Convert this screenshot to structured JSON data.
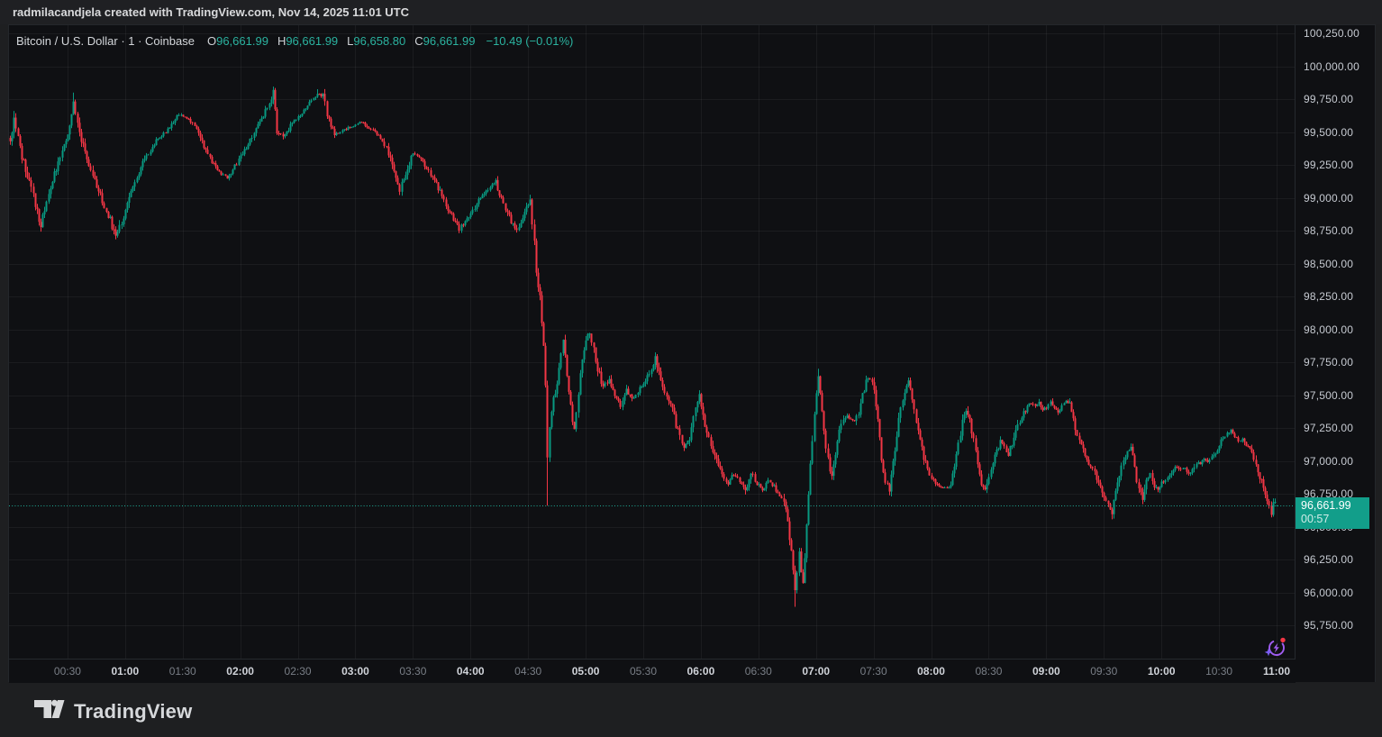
{
  "attribution": "radmilacandjela created with TradingView.com, Nov 14, 2025 11:01 UTC",
  "legend": {
    "symbol": "Bitcoin / U.S. Dollar · 1 · Coinbase",
    "ohlc": [
      {
        "label": "O",
        "value": "96,661.99"
      },
      {
        "label": "H",
        "value": "96,661.99"
      },
      {
        "label": "L",
        "value": "96,658.80"
      },
      {
        "label": "C",
        "value": "96,661.99"
      }
    ],
    "change": "−10.49 (−0.01%)"
  },
  "price_label": {
    "price": "96,661.99",
    "countdown": "00:57",
    "value": 96661.99
  },
  "footer": {
    "brand": "TradingView"
  },
  "icons": {
    "ai_assistant": "ai-spark-refresh-icon",
    "logo": "tradingview-logo"
  },
  "chart_data": {
    "type": "candlestick",
    "title": "Bitcoin / U.S. Dollar",
    "interval": "1",
    "exchange": "Coinbase",
    "last": {
      "open": 96661.99,
      "high": 96661.99,
      "low": 96658.8,
      "close": 96661.99,
      "change": -10.49,
      "change_pct": -0.01
    },
    "colors": {
      "up": "#089981",
      "down": "#f23645",
      "last_line": "#1fae98",
      "label_bg": "#129e8a",
      "grid": "rgba(250,250,255,0.05)"
    },
    "y_axis": {
      "min": 95750,
      "max": 100250,
      "tick_step": 250,
      "ticks": [
        {
          "value": 100250,
          "label": "100,250.00"
        },
        {
          "value": 100000,
          "label": "100,000.00"
        },
        {
          "value": 99750,
          "label": "99,750.00"
        },
        {
          "value": 99500,
          "label": "99,500.00"
        },
        {
          "value": 99250,
          "label": "99,250.00"
        },
        {
          "value": 99000,
          "label": "99,000.00"
        },
        {
          "value": 98750,
          "label": "98,750.00"
        },
        {
          "value": 98500,
          "label": "98,500.00"
        },
        {
          "value": 98250,
          "label": "98,250.00"
        },
        {
          "value": 98000,
          "label": "98,000.00"
        },
        {
          "value": 97750,
          "label": "97,750.00"
        },
        {
          "value": 97500,
          "label": "97,500.00"
        },
        {
          "value": 97250,
          "label": "97,250.00"
        },
        {
          "value": 97000,
          "label": "97,000.00"
        },
        {
          "value": 96750,
          "label": "96,750.00"
        },
        {
          "value": 96500,
          "label": "96,500.00"
        },
        {
          "value": 96250,
          "label": "96,250.00"
        },
        {
          "value": 96000,
          "label": "96,000.00"
        },
        {
          "value": 95750,
          "label": "95,750.00"
        }
      ]
    },
    "x_axis": {
      "start_minute": 0,
      "end_minute": 660,
      "ticks": [
        {
          "m": 30,
          "label": "00:30",
          "major": false
        },
        {
          "m": 60,
          "label": "01:00",
          "major": true
        },
        {
          "m": 90,
          "label": "01:30",
          "major": false
        },
        {
          "m": 120,
          "label": "02:00",
          "major": true
        },
        {
          "m": 150,
          "label": "02:30",
          "major": false
        },
        {
          "m": 180,
          "label": "03:00",
          "major": true
        },
        {
          "m": 210,
          "label": "03:30",
          "major": false
        },
        {
          "m": 240,
          "label": "04:00",
          "major": true
        },
        {
          "m": 270,
          "label": "04:30",
          "major": false
        },
        {
          "m": 300,
          "label": "05:00",
          "major": true
        },
        {
          "m": 330,
          "label": "05:30",
          "major": false
        },
        {
          "m": 360,
          "label": "06:00",
          "major": true
        },
        {
          "m": 390,
          "label": "06:30",
          "major": false
        },
        {
          "m": 420,
          "label": "07:00",
          "major": true
        },
        {
          "m": 450,
          "label": "07:30",
          "major": false
        },
        {
          "m": 480,
          "label": "08:00",
          "major": true
        },
        {
          "m": 510,
          "label": "08:30",
          "major": false
        },
        {
          "m": 540,
          "label": "09:00",
          "major": true
        },
        {
          "m": 570,
          "label": "09:30",
          "major": false
        },
        {
          "m": 600,
          "label": "10:00",
          "major": true
        },
        {
          "m": 630,
          "label": "10:30",
          "major": false
        },
        {
          "m": 660,
          "label": "11:00",
          "major": true
        }
      ]
    },
    "path_waypoints": [
      [
        0,
        99430
      ],
      [
        2,
        99580
      ],
      [
        6,
        99310
      ],
      [
        11,
        99060
      ],
      [
        16,
        98790
      ],
      [
        21,
        99080
      ],
      [
        26,
        99310
      ],
      [
        31,
        99560
      ],
      [
        33,
        99710
      ],
      [
        36,
        99500
      ],
      [
        41,
        99260
      ],
      [
        47,
        99010
      ],
      [
        52,
        98830
      ],
      [
        55,
        98700
      ],
      [
        59,
        98860
      ],
      [
        64,
        99090
      ],
      [
        70,
        99300
      ],
      [
        76,
        99430
      ],
      [
        82,
        99520
      ],
      [
        88,
        99640
      ],
      [
        94,
        99580
      ],
      [
        99,
        99470
      ],
      [
        104,
        99300
      ],
      [
        109,
        99190
      ],
      [
        113,
        99150
      ],
      [
        118,
        99260
      ],
      [
        124,
        99400
      ],
      [
        130,
        99580
      ],
      [
        135,
        99710
      ],
      [
        137,
        99800
      ],
      [
        139,
        99510
      ],
      [
        142,
        99450
      ],
      [
        147,
        99570
      ],
      [
        152,
        99650
      ],
      [
        157,
        99740
      ],
      [
        160,
        99795
      ],
      [
        163,
        99770
      ],
      [
        166,
        99580
      ],
      [
        169,
        99480
      ],
      [
        173,
        99510
      ],
      [
        178,
        99545
      ],
      [
        183,
        99580
      ],
      [
        187,
        99525
      ],
      [
        191,
        99490
      ],
      [
        195,
        99400
      ],
      [
        199,
        99265
      ],
      [
        203,
        99070
      ],
      [
        207,
        99230
      ],
      [
        210,
        99340
      ],
      [
        214,
        99300
      ],
      [
        219,
        99180
      ],
      [
        224,
        99050
      ],
      [
        229,
        98890
      ],
      [
        234,
        98765
      ],
      [
        239,
        98850
      ],
      [
        244,
        98990
      ],
      [
        249,
        99060
      ],
      [
        253,
        99120
      ],
      [
        257,
        98960
      ],
      [
        261,
        98820
      ],
      [
        264,
        98760
      ],
      [
        267,
        98850
      ],
      [
        269,
        98930
      ],
      [
        271,
        98990
      ],
      [
        272,
        98820
      ],
      [
        273,
        98650
      ],
      [
        274,
        98450
      ],
      [
        275,
        98290
      ],
      [
        276,
        98230
      ],
      [
        277,
        98060
      ],
      [
        278,
        97860
      ],
      [
        279,
        97560
      ],
      [
        280,
        97050
      ],
      [
        281,
        97260
      ],
      [
        283,
        97460
      ],
      [
        285,
        97570
      ],
      [
        288,
        97935
      ],
      [
        290,
        97650
      ],
      [
        292,
        97410
      ],
      [
        294,
        97240
      ],
      [
        296,
        97520
      ],
      [
        298,
        97770
      ],
      [
        300,
        97930
      ],
      [
        302,
        97975
      ],
      [
        304,
        97845
      ],
      [
        306,
        97695
      ],
      [
        309,
        97565
      ],
      [
        312,
        97620
      ],
      [
        315,
        97485
      ],
      [
        318,
        97425
      ],
      [
        321,
        97540
      ],
      [
        324,
        97465
      ],
      [
        327,
        97530
      ],
      [
        330,
        97590
      ],
      [
        333,
        97680
      ],
      [
        336,
        97770
      ],
      [
        339,
        97620
      ],
      [
        342,
        97500
      ],
      [
        345,
        97380
      ],
      [
        348,
        97230
      ],
      [
        351,
        97105
      ],
      [
        354,
        97180
      ],
      [
        357,
        97400
      ],
      [
        359,
        97520
      ],
      [
        362,
        97285
      ],
      [
        365,
        97135
      ],
      [
        368,
        97000
      ],
      [
        371,
        96890
      ],
      [
        374,
        96830
      ],
      [
        377,
        96905
      ],
      [
        380,
        96850
      ],
      [
        383,
        96780
      ],
      [
        386,
        96920
      ],
      [
        389,
        96830
      ],
      [
        392,
        96780
      ],
      [
        395,
        96850
      ],
      [
        398,
        96800
      ],
      [
        401,
        96740
      ],
      [
        403,
        96700
      ],
      [
        405,
        96550
      ],
      [
        407,
        96300
      ],
      [
        409,
        95990
      ],
      [
        411,
        96290
      ],
      [
        413,
        96050
      ],
      [
        415,
        96500
      ],
      [
        417,
        96980
      ],
      [
        419,
        97340
      ],
      [
        421,
        97640
      ],
      [
        423,
        97400
      ],
      [
        425,
        97115
      ],
      [
        427,
        96935
      ],
      [
        428,
        96875
      ],
      [
        430,
        97050
      ],
      [
        432,
        97210
      ],
      [
        434,
        97320
      ],
      [
        436,
        97360
      ],
      [
        438,
        97310
      ],
      [
        440,
        97295
      ],
      [
        442,
        97380
      ],
      [
        444,
        97490
      ],
      [
        446,
        97600
      ],
      [
        448,
        97640
      ],
      [
        450,
        97560
      ],
      [
        452,
        97310
      ],
      [
        454,
        97025
      ],
      [
        456,
        96840
      ],
      [
        458,
        96780
      ],
      [
        460,
        97000
      ],
      [
        462,
        97200
      ],
      [
        464,
        97400
      ],
      [
        466,
        97540
      ],
      [
        468,
        97600
      ],
      [
        470,
        97455
      ],
      [
        472,
        97295
      ],
      [
        474,
        97145
      ],
      [
        476,
        97015
      ],
      [
        478,
        96925
      ],
      [
        480,
        96865
      ],
      [
        482,
        96825
      ],
      [
        484,
        96800
      ],
      [
        486,
        96790
      ],
      [
        488,
        96800
      ],
      [
        490,
        96810
      ],
      [
        492,
        96950
      ],
      [
        494,
        97130
      ],
      [
        496,
        97290
      ],
      [
        498,
        97375
      ],
      [
        500,
        97300
      ],
      [
        502,
        97150
      ],
      [
        504,
        96980
      ],
      [
        506,
        96835
      ],
      [
        508,
        96770
      ],
      [
        510,
        96900
      ],
      [
        512,
        97000
      ],
      [
        514,
        97080
      ],
      [
        516,
        97145
      ],
      [
        518,
        97095
      ],
      [
        520,
        97050
      ],
      [
        522,
        97130
      ],
      [
        524,
        97225
      ],
      [
        526,
        97305
      ],
      [
        528,
        97365
      ],
      [
        530,
        97405
      ],
      [
        532,
        97445
      ],
      [
        534,
        97405
      ],
      [
        536,
        97445
      ],
      [
        538,
        97390
      ],
      [
        540,
        97405
      ],
      [
        542,
        97445
      ],
      [
        544,
        97400
      ],
      [
        546,
        97360
      ],
      [
        548,
        97410
      ],
      [
        550,
        97445
      ],
      [
        552,
        97430
      ],
      [
        554,
        97310
      ],
      [
        556,
        97195
      ],
      [
        558,
        97110
      ],
      [
        560,
        97040
      ],
      [
        562,
        96975
      ],
      [
        564,
        96930
      ],
      [
        566,
        96870
      ],
      [
        568,
        96790
      ],
      [
        570,
        96715
      ],
      [
        572,
        96655
      ],
      [
        574,
        96620
      ],
      [
        576,
        96755
      ],
      [
        578,
        96890
      ],
      [
        580,
        96990
      ],
      [
        582,
        97060
      ],
      [
        584,
        97090
      ],
      [
        586,
        96935
      ],
      [
        588,
        96785
      ],
      [
        590,
        96725
      ],
      [
        592,
        96860
      ],
      [
        594,
        96890
      ],
      [
        596,
        96815
      ],
      [
        598,
        96780
      ],
      [
        600,
        96830
      ],
      [
        602,
        96860
      ],
      [
        604,
        96890
      ],
      [
        606,
        96940
      ],
      [
        608,
        96960
      ],
      [
        610,
        96930
      ],
      [
        612,
        96950
      ],
      [
        614,
        96900
      ],
      [
        616,
        96940
      ],
      [
        618,
        96990
      ],
      [
        620,
        96970
      ],
      [
        622,
        97010
      ],
      [
        624,
        96990
      ],
      [
        626,
        97030
      ],
      [
        628,
        97070
      ],
      [
        630,
        97120
      ],
      [
        632,
        97170
      ],
      [
        634,
        97210
      ],
      [
        636,
        97245
      ],
      [
        638,
        97190
      ],
      [
        640,
        97150
      ],
      [
        642,
        97170
      ],
      [
        644,
        97120
      ],
      [
        646,
        97080
      ],
      [
        648,
        97010
      ],
      [
        650,
        96930
      ],
      [
        652,
        96840
      ],
      [
        654,
        96750
      ],
      [
        656,
        96645
      ],
      [
        657,
        96605
      ],
      [
        658,
        96690
      ],
      [
        659,
        96710
      ],
      [
        660,
        96661.99
      ]
    ],
    "wick_spikes": [
      {
        "minute": 2,
        "high": 99660
      },
      {
        "minute": 33,
        "high": 99800
      },
      {
        "minute": 137,
        "high": 99845
      },
      {
        "minute": 160,
        "high": 99825
      },
      {
        "minute": 280,
        "low": 96660
      },
      {
        "minute": 409,
        "low": 95890
      },
      {
        "minute": 421,
        "high": 97700
      },
      {
        "minute": 574,
        "low": 96565
      },
      {
        "minute": 657,
        "low": 96570
      }
    ]
  }
}
